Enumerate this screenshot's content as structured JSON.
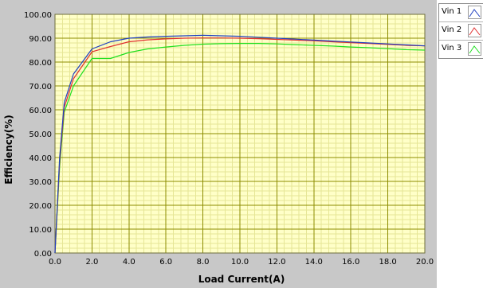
{
  "chart_data": {
    "type": "line",
    "title": "",
    "xlabel": "Load Current(A)",
    "ylabel": "Efficiency(%)",
    "xlim": [
      0,
      20
    ],
    "ylim": [
      0,
      100
    ],
    "x_ticks": [
      "0.0",
      "2.0",
      "4.0",
      "6.0",
      "8.0",
      "10.0",
      "12.0",
      "14.0",
      "16.0",
      "18.0",
      "20.0"
    ],
    "y_ticks": [
      "0.00",
      "10.00",
      "20.00",
      "30.00",
      "40.00",
      "50.00",
      "60.00",
      "70.00",
      "80.00",
      "90.00",
      "100.00"
    ],
    "x_tick_values": [
      0,
      2,
      4,
      6,
      8,
      10,
      12,
      14,
      16,
      18,
      20
    ],
    "y_tick_values": [
      0,
      10,
      20,
      30,
      40,
      50,
      60,
      70,
      80,
      90,
      100
    ],
    "grid": true,
    "legend_position": "right",
    "plot_background": "#ffffc8",
    "major_grid_color": "#8c8c00",
    "minor_grid_color": "#e6e696",
    "series": [
      {
        "name": "Vin 1",
        "color": "#2040c0",
        "x": [
          0,
          0.25,
          0.5,
          1,
          2,
          3,
          4,
          5,
          6,
          7,
          8,
          9,
          10,
          11,
          12,
          13,
          14,
          15,
          16,
          17,
          18,
          19,
          20
        ],
        "y": [
          0,
          40,
          63,
          75,
          85.5,
          88.5,
          90,
          90.5,
          90.8,
          91,
          91.2,
          91,
          90.8,
          90.4,
          90,
          89.6,
          89.2,
          88.8,
          88.4,
          88,
          87.6,
          87.2,
          86.8
        ]
      },
      {
        "name": "Vin 2",
        "color": "#e03030",
        "x": [
          0,
          0.25,
          0.5,
          1,
          2,
          3,
          4,
          5,
          6,
          7,
          8,
          9,
          10,
          11,
          12,
          13,
          14,
          15,
          16,
          17,
          18,
          19,
          20
        ],
        "y": [
          0,
          38,
          61,
          73,
          84.3,
          86.5,
          88.5,
          89.3,
          89.7,
          90,
          90.1,
          90.1,
          90,
          89.8,
          89.5,
          89.2,
          88.9,
          88.5,
          88.1,
          87.8,
          87.4,
          87,
          86.8
        ]
      },
      {
        "name": "Vin 3",
        "color": "#20e020",
        "x": [
          0,
          0.25,
          0.5,
          1,
          2,
          3,
          4,
          5,
          6,
          7,
          8,
          9,
          10,
          11,
          12,
          13,
          14,
          15,
          16,
          17,
          18,
          19,
          20
        ],
        "y": [
          0,
          36,
          59,
          70,
          81.5,
          81.5,
          84,
          85.5,
          86.3,
          87,
          87.5,
          87.7,
          87.8,
          87.8,
          87.6,
          87.3,
          87,
          86.7,
          86.3,
          86,
          85.6,
          85.2,
          85
        ]
      }
    ]
  }
}
